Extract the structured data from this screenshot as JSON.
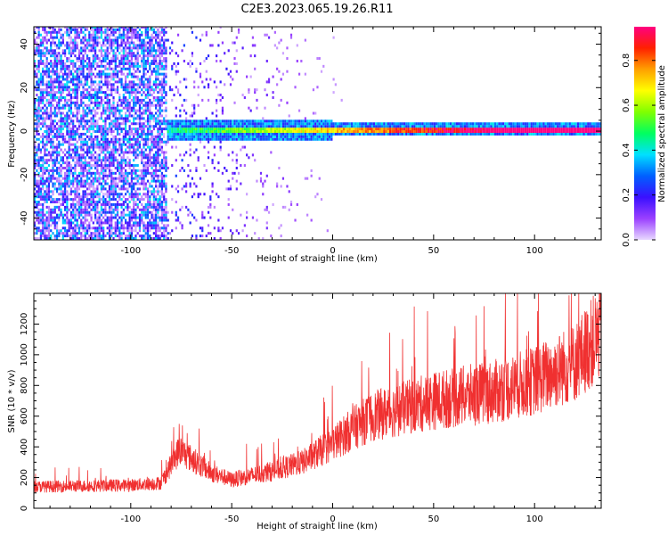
{
  "title": "C2E3.2023.065.19.26.R11",
  "chart_data": [
    {
      "type": "heatmap",
      "name": "spectrogram",
      "xlabel": "Height of straight line (km)",
      "ylabel": "Frequency (Hz)",
      "xlim": [
        -148,
        133
      ],
      "ylim": [
        -50,
        48
      ],
      "xticks": [
        -100,
        -50,
        0,
        50,
        100
      ],
      "xtick_labels": [
        "-100",
        "-50",
        "0",
        "50",
        "100"
      ],
      "yticks": [
        -40,
        -20,
        0,
        20,
        40
      ],
      "ytick_labels": [
        "-40",
        "-20",
        "0",
        "20",
        "40"
      ],
      "colorbar": {
        "label": "Normalized spectral amplitude",
        "range": [
          0.0,
          0.95
        ],
        "ticks": [
          0.0,
          0.2,
          0.4,
          0.6,
          0.8
        ],
        "tick_labels": [
          "0.0",
          "0.2",
          "0.4",
          "0.6",
          "0.8"
        ],
        "colormap": [
          "#e8d8ff",
          "#9a40ff",
          "#3a10ff",
          "#0060ff",
          "#00e0ff",
          "#00ff60",
          "#80ff00",
          "#ffff00",
          "#ffa000",
          "#ff2000",
          "#ff0080"
        ]
      },
      "features": {
        "noise_region_x": [
          -148,
          -82
        ],
        "band_start_x": -82,
        "band_center_hz": 0,
        "band_halfwidth_hz": 3
      }
    },
    {
      "type": "line",
      "name": "snr",
      "xlabel": "Height of straight line (km)",
      "ylabel": "SNR (10 * v/v)",
      "xlim": [
        -148,
        133
      ],
      "ylim": [
        0,
        1400
      ],
      "xticks": [
        -100,
        -50,
        0,
        50,
        100
      ],
      "xtick_labels": [
        "-100",
        "-50",
        "0",
        "50",
        "100"
      ],
      "yticks": [
        0,
        200,
        400,
        600,
        800,
        1000,
        1200
      ],
      "ytick_labels": [
        "0",
        "200",
        "400",
        "600",
        "800",
        "1000",
        "1200"
      ],
      "color": "#f03030",
      "trend_x": [
        -148,
        -100,
        -85,
        -76,
        -60,
        -50,
        -30,
        -15,
        0,
        10,
        20,
        50,
        80,
        100,
        120,
        133
      ],
      "trend_y": [
        140,
        150,
        165,
        380,
        230,
        185,
        240,
        300,
        420,
        520,
        600,
        700,
        760,
        830,
        950,
        1150
      ]
    }
  ]
}
